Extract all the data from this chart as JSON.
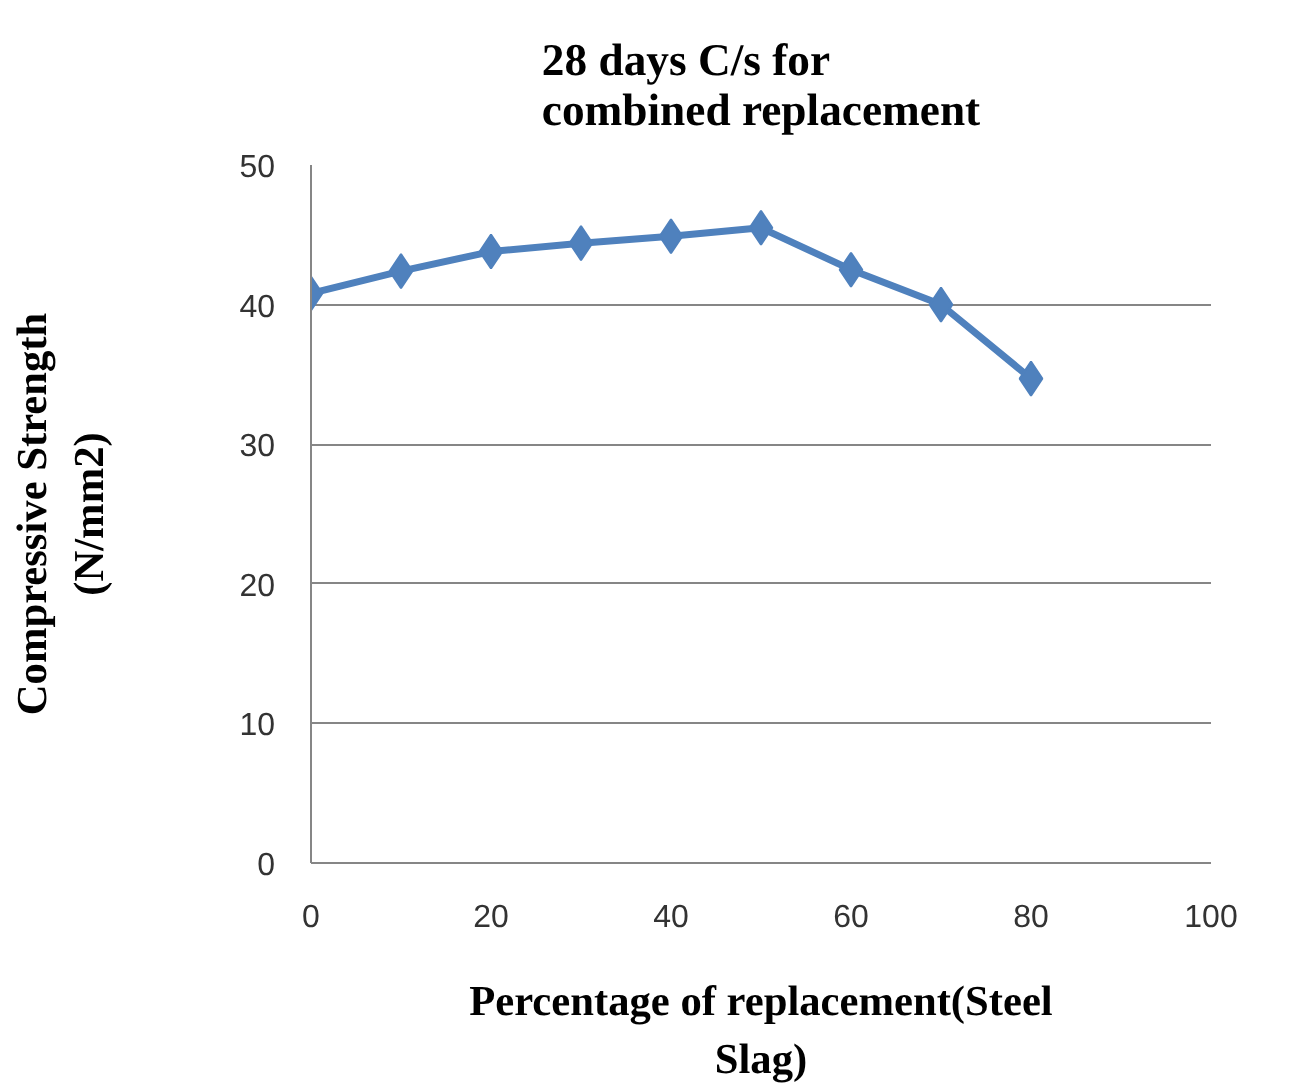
{
  "chart_data": {
    "type": "line",
    "title": "28 days C/s for combined replacement",
    "xlabel": "Percentage of replacement(Steel Slag)",
    "ylabel": "Compressive Strength (N/mm2)",
    "x": [
      0,
      10,
      20,
      30,
      40,
      50,
      60,
      70,
      80
    ],
    "series": [
      {
        "color": "#4f81bd",
        "values": [
          40.8,
          42.4,
          43.8,
          44.4,
          44.9,
          45.5,
          42.5,
          40.0,
          34.7
        ]
      }
    ],
    "xlim": [
      0,
      100
    ],
    "xticks": [
      0,
      20,
      40,
      60,
      80,
      100
    ],
    "ylim": [
      0,
      50
    ],
    "yticks": [
      0,
      10,
      20,
      30,
      40,
      50
    ],
    "grid": "y",
    "marker": "diamond",
    "line_style": "solid"
  }
}
